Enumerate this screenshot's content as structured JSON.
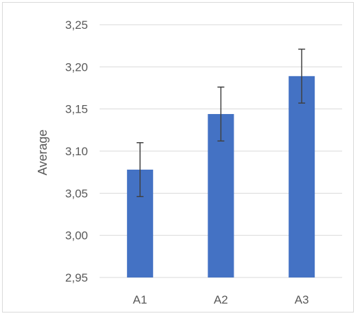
{
  "chart_data": {
    "type": "bar",
    "title": "",
    "xlabel": "",
    "ylabel": "Average",
    "categories": [
      "A1",
      "A2",
      "A3"
    ],
    "values": [
      3.078,
      3.144,
      3.189
    ],
    "error": [
      0.032,
      0.032,
      0.032
    ],
    "ylim": [
      2.95,
      3.25
    ],
    "yticks": [
      2.95,
      3.0,
      3.05,
      3.1,
      3.15,
      3.2,
      3.25
    ],
    "ytick_labels": [
      "2,95",
      "3,00",
      "3,05",
      "3,10",
      "3,15",
      "3,20",
      "3,25"
    ],
    "grid": true,
    "legend": "none",
    "colors": {
      "bar": "#4472c4",
      "error_bar": "#404040",
      "grid": "#d9d9d9",
      "text": "#595959"
    }
  }
}
